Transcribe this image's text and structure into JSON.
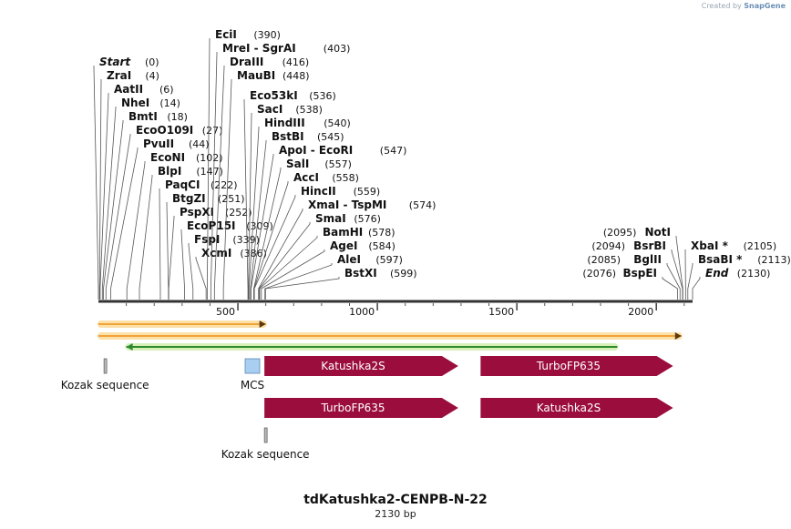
{
  "credit": {
    "prefix": "Created by",
    "brand": "SnapGene"
  },
  "plasmid": {
    "name": "tdKatushka2-CENPB-N-22",
    "length_label": "2130 bp",
    "length": 2130
  },
  "ruler": {
    "ticks": [
      500,
      1000,
      1500,
      2000
    ]
  },
  "sites_left": [
    {
      "name": "Start",
      "pos": 0,
      "label": "(0)",
      "italic": true
    },
    {
      "name": "ZraI",
      "pos": 4,
      "label": "(4)"
    },
    {
      "name": "AatII",
      "pos": 6,
      "label": "(6)"
    },
    {
      "name": "NheI",
      "pos": 14,
      "label": "(14)"
    },
    {
      "name": "BmtI",
      "pos": 18,
      "label": "(18)"
    },
    {
      "name": "EcoO109I",
      "pos": 27,
      "label": "(27)"
    },
    {
      "name": "PvuII",
      "pos": 44,
      "label": "(44)"
    },
    {
      "name": "EcoNI",
      "pos": 102,
      "label": "(102)"
    },
    {
      "name": "BlpI",
      "pos": 147,
      "label": "(147)"
    },
    {
      "name": "PaqCI",
      "pos": 222,
      "label": "(222)"
    },
    {
      "name": "BtgZI",
      "pos": 251,
      "label": "(251)"
    },
    {
      "name": "PspXI",
      "pos": 252,
      "label": "(252)"
    },
    {
      "name": "EcoP15I",
      "pos": 309,
      "label": "(309)"
    },
    {
      "name": "FspI",
      "pos": 339,
      "label": "(339)"
    },
    {
      "name": "XcmI",
      "pos": 386,
      "label": "(386)"
    }
  ],
  "sites_top": [
    {
      "name": "EciI",
      "pos": 390,
      "label": "(390)"
    },
    {
      "name": "MreI  - SgrAI",
      "pos": 403,
      "label": "(403)"
    },
    {
      "name": "DraIII",
      "pos": 416,
      "label": "(416)"
    },
    {
      "name": "MauBI",
      "pos": 448,
      "label": "(448)"
    }
  ],
  "sites_mid": [
    {
      "name": "Eco53kI",
      "pos": 536,
      "label": "(536)"
    },
    {
      "name": "SacI",
      "pos": 538,
      "label": "(538)"
    },
    {
      "name": "HindIII",
      "pos": 540,
      "label": "(540)"
    },
    {
      "name": "BstBI",
      "pos": 545,
      "label": "(545)"
    },
    {
      "name": "ApoI  - EcoRI",
      "pos": 547,
      "label": "(547)"
    },
    {
      "name": "SalI",
      "pos": 557,
      "label": "(557)"
    },
    {
      "name": "AccI",
      "pos": 558,
      "label": "(558)"
    },
    {
      "name": "HincII",
      "pos": 559,
      "label": "(559)"
    },
    {
      "name": "XmaI  - TspMI",
      "pos": 574,
      "label": "(574)"
    },
    {
      "name": "SmaI",
      "pos": 576,
      "label": "(576)"
    },
    {
      "name": "BamHI",
      "pos": 578,
      "label": "(578)"
    },
    {
      "name": "AgeI",
      "pos": 584,
      "label": "(584)"
    },
    {
      "name": "AleI",
      "pos": 597,
      "label": "(597)"
    },
    {
      "name": "BstXI",
      "pos": 599,
      "label": "(599)"
    }
  ],
  "sites_right_a": [
    {
      "name": "NotI",
      "pos": 2095,
      "label": "(2095)"
    },
    {
      "name": "BsrBI",
      "pos": 2094,
      "label": "(2094)"
    },
    {
      "name": "BglII",
      "pos": 2085,
      "label": "(2085)"
    },
    {
      "name": "BspEI",
      "pos": 2076,
      "label": "(2076)"
    }
  ],
  "sites_right_b": [
    {
      "name": "XbaI *",
      "pos": 2105,
      "label": "(2105)"
    },
    {
      "name": "BsaBI *",
      "pos": 2113,
      "label": "(2113)"
    },
    {
      "name": "End",
      "pos": 2130,
      "label": "(2130)",
      "italic": true
    }
  ],
  "orfs": [
    {
      "start": 0,
      "end": 600,
      "dir": "fwd"
    },
    {
      "start": 0,
      "end": 2090,
      "dir": "fwd"
    },
    {
      "start": 100,
      "end": 1860,
      "dir": "rev"
    }
  ],
  "features": [
    {
      "name": "Kozak sequence",
      "type": "kozak",
      "start": 20,
      "end": 30
    },
    {
      "name": "MCS",
      "type": "mcs",
      "start": 530,
      "end": 590
    },
    {
      "name": "Katushka2S",
      "type": "cds",
      "start": 595,
      "end": 1290
    },
    {
      "name": "TurboFP635",
      "type": "cds",
      "start": 1370,
      "end": 2060
    },
    {
      "name": "TurboFP635",
      "type": "cds",
      "start": 595,
      "end": 1290
    },
    {
      "name": "Katushka2S",
      "type": "cds",
      "start": 1370,
      "end": 2060
    },
    {
      "name": "Kozak sequence",
      "type": "kozak",
      "start": 595,
      "end": 605
    }
  ],
  "colors": {
    "cds": "#9b0d3c",
    "mcs": "#a8cff2",
    "orf_fill": "#f2a33a",
    "orf_glow": "#fbe0a8",
    "orf_rev": "#2d8a2d",
    "orf_rev_glow": "#d6f0b8",
    "line": "#555555"
  }
}
